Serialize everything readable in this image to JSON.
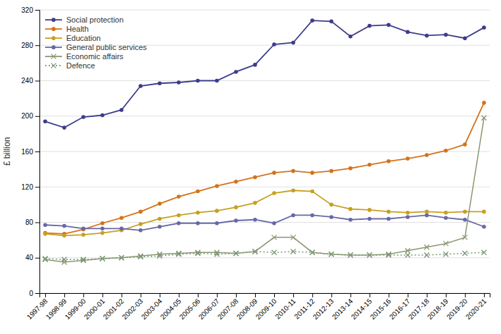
{
  "chart_data": {
    "type": "line",
    "ylabel": "£ billion",
    "categories": [
      "1997-98",
      "1998-99",
      "1999-00",
      "2000-01",
      "2001-02",
      "2002-03",
      "2003-04",
      "2004-05",
      "2005-06",
      "2006-07",
      "2007-08",
      "2008-09",
      "2009-10",
      "2010-11",
      "2011-12",
      "2012-13",
      "2013-14",
      "2014-15",
      "2015-16",
      "2016-17",
      "2017-18",
      "2018-19",
      "2019-20",
      "2020-21"
    ],
    "series": [
      {
        "name": "Social protection",
        "color": "#3d3d8c",
        "marker": "circle",
        "line_style": "solid",
        "values": [
          194,
          187,
          199,
          201,
          207,
          234,
          237,
          238,
          240,
          240,
          250,
          258,
          281,
          283,
          308,
          307,
          290,
          302,
          303,
          295,
          291,
          292,
          288,
          300
        ]
      },
      {
        "name": "Health",
        "color": "#d4731a",
        "marker": "circle",
        "line_style": "solid",
        "values": [
          68,
          67,
          72,
          79,
          85,
          92,
          101,
          109,
          115,
          121,
          126,
          131,
          136,
          138,
          136,
          138,
          141,
          145,
          149,
          152,
          156,
          161,
          168,
          215
        ]
      },
      {
        "name": "Education",
        "color": "#c8a020",
        "marker": "circle",
        "line_style": "solid",
        "values": [
          67,
          65,
          66,
          68,
          71,
          78,
          84,
          88,
          91,
          93,
          97,
          102,
          113,
          116,
          115,
          100,
          95,
          94,
          92,
          91,
          92,
          91,
          92,
          92
        ]
      },
      {
        "name": "General public services",
        "color": "#6868a8",
        "marker": "circle",
        "line_style": "solid",
        "values": [
          77,
          76,
          73,
          73,
          73,
          71,
          75,
          79,
          79,
          79,
          82,
          83,
          79,
          88,
          88,
          86,
          83,
          84,
          84,
          86,
          88,
          85,
          83,
          75
        ]
      },
      {
        "name": "Economic affairs",
        "color": "#8a9870",
        "marker": "x",
        "line_style": "solid",
        "values": [
          38,
          35,
          37,
          39,
          40,
          42,
          44,
          45,
          46,
          46,
          45,
          47,
          63,
          63,
          46,
          44,
          43,
          43,
          44,
          48,
          52,
          56,
          63,
          198
        ]
      },
      {
        "name": "Defence",
        "color": "#7a9878",
        "marker": "x",
        "line_style": "dotted",
        "values": [
          39,
          38,
          38,
          39,
          40,
          41,
          42,
          44,
          45,
          44,
          45,
          47,
          46,
          47,
          46,
          44,
          43,
          43,
          43,
          43,
          43,
          44,
          45,
          46
        ]
      }
    ],
    "ylim": [
      0,
      320
    ],
    "yticks": [
      0,
      40,
      80,
      120,
      160,
      200,
      240,
      280,
      320
    ],
    "grid": true,
    "legend": "upper-left"
  }
}
